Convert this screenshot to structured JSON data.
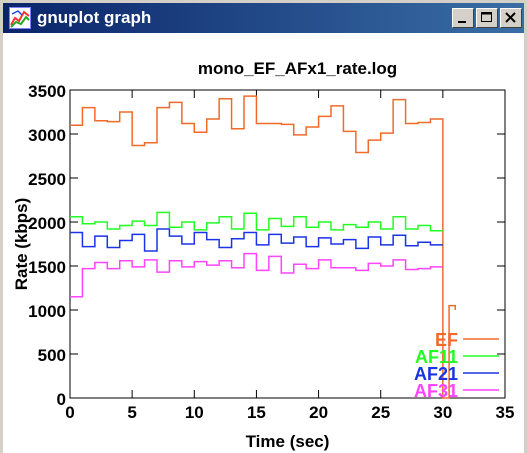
{
  "window": {
    "title": "gnuplot graph",
    "app_icon": "gnuplot-graph-icon",
    "buttons": [
      "minimize-icon",
      "maximize-icon",
      "close-icon"
    ]
  },
  "chart_data": {
    "type": "line",
    "title": "mono_EF_AFx1_rate.log",
    "xlabel": "Time (sec)",
    "ylabel": "Rate (kbps)",
    "xlim": [
      0,
      35
    ],
    "ylim": [
      0,
      3500
    ],
    "xticks": [
      0,
      5,
      10,
      15,
      20,
      25,
      30,
      35
    ],
    "yticks": [
      0,
      500,
      1000,
      1500,
      2000,
      2500,
      3000,
      3500
    ],
    "grid": false,
    "legend_position": "bottom-right",
    "step": true,
    "series": [
      {
        "name": "EF",
        "color": "#f06a2a",
        "x": [
          0,
          1,
          2,
          3,
          4,
          5,
          6,
          7,
          8,
          9,
          10,
          11,
          12,
          13,
          14,
          15,
          16,
          17,
          18,
          19,
          20,
          21,
          22,
          23,
          24,
          25,
          26,
          27,
          28,
          29,
          30,
          30.5,
          31
        ],
        "y": [
          3100,
          3300,
          3150,
          3140,
          3250,
          2870,
          2900,
          3300,
          3360,
          3120,
          3020,
          3170,
          3400,
          3060,
          3430,
          3120,
          3120,
          3110,
          2990,
          3080,
          3200,
          3320,
          3030,
          2790,
          2930,
          3010,
          3390,
          3120,
          3130,
          3170,
          0,
          1050,
          1000
        ]
      },
      {
        "name": "AF11",
        "color": "#22ff22",
        "x": [
          0,
          1,
          2,
          3,
          4,
          5,
          6,
          7,
          8,
          9,
          10,
          11,
          12,
          13,
          14,
          15,
          16,
          17,
          18,
          19,
          20,
          21,
          22,
          23,
          24,
          25,
          26,
          27,
          28,
          29,
          30
        ],
        "y": [
          2060,
          1980,
          2000,
          1920,
          1960,
          2010,
          1960,
          2110,
          1940,
          2000,
          1910,
          1990,
          2060,
          1920,
          2100,
          1910,
          2040,
          1950,
          2060,
          1940,
          2000,
          1910,
          1970,
          1940,
          2000,
          1920,
          2060,
          1920,
          1960,
          1900,
          1900
        ]
      },
      {
        "name": "AF21",
        "color": "#1a33e6",
        "x": [
          0,
          1,
          2,
          3,
          4,
          5,
          6,
          7,
          8,
          9,
          10,
          11,
          12,
          13,
          14,
          15,
          16,
          17,
          18,
          19,
          20,
          21,
          22,
          23,
          24,
          25,
          26,
          27,
          28,
          29,
          30
        ],
        "y": [
          1880,
          1720,
          1840,
          1710,
          1790,
          1860,
          1670,
          1920,
          1840,
          1750,
          1880,
          1800,
          1710,
          1810,
          1880,
          1740,
          1860,
          1760,
          1830,
          1720,
          1820,
          1750,
          1800,
          1700,
          1830,
          1740,
          1850,
          1730,
          1770,
          1740,
          1740
        ]
      },
      {
        "name": "AF31",
        "color": "#ff44ff",
        "x": [
          0,
          1,
          2,
          3,
          4,
          5,
          6,
          7,
          8,
          9,
          10,
          11,
          12,
          13,
          14,
          15,
          16,
          17,
          18,
          19,
          20,
          21,
          22,
          23,
          24,
          25,
          26,
          27,
          28,
          29,
          30
        ],
        "y": [
          1150,
          1470,
          1540,
          1470,
          1560,
          1490,
          1570,
          1430,
          1560,
          1490,
          1550,
          1510,
          1560,
          1480,
          1640,
          1450,
          1610,
          1420,
          1520,
          1470,
          1570,
          1480,
          1480,
          1450,
          1530,
          1500,
          1570,
          1460,
          1470,
          1490,
          1490
        ]
      }
    ]
  }
}
